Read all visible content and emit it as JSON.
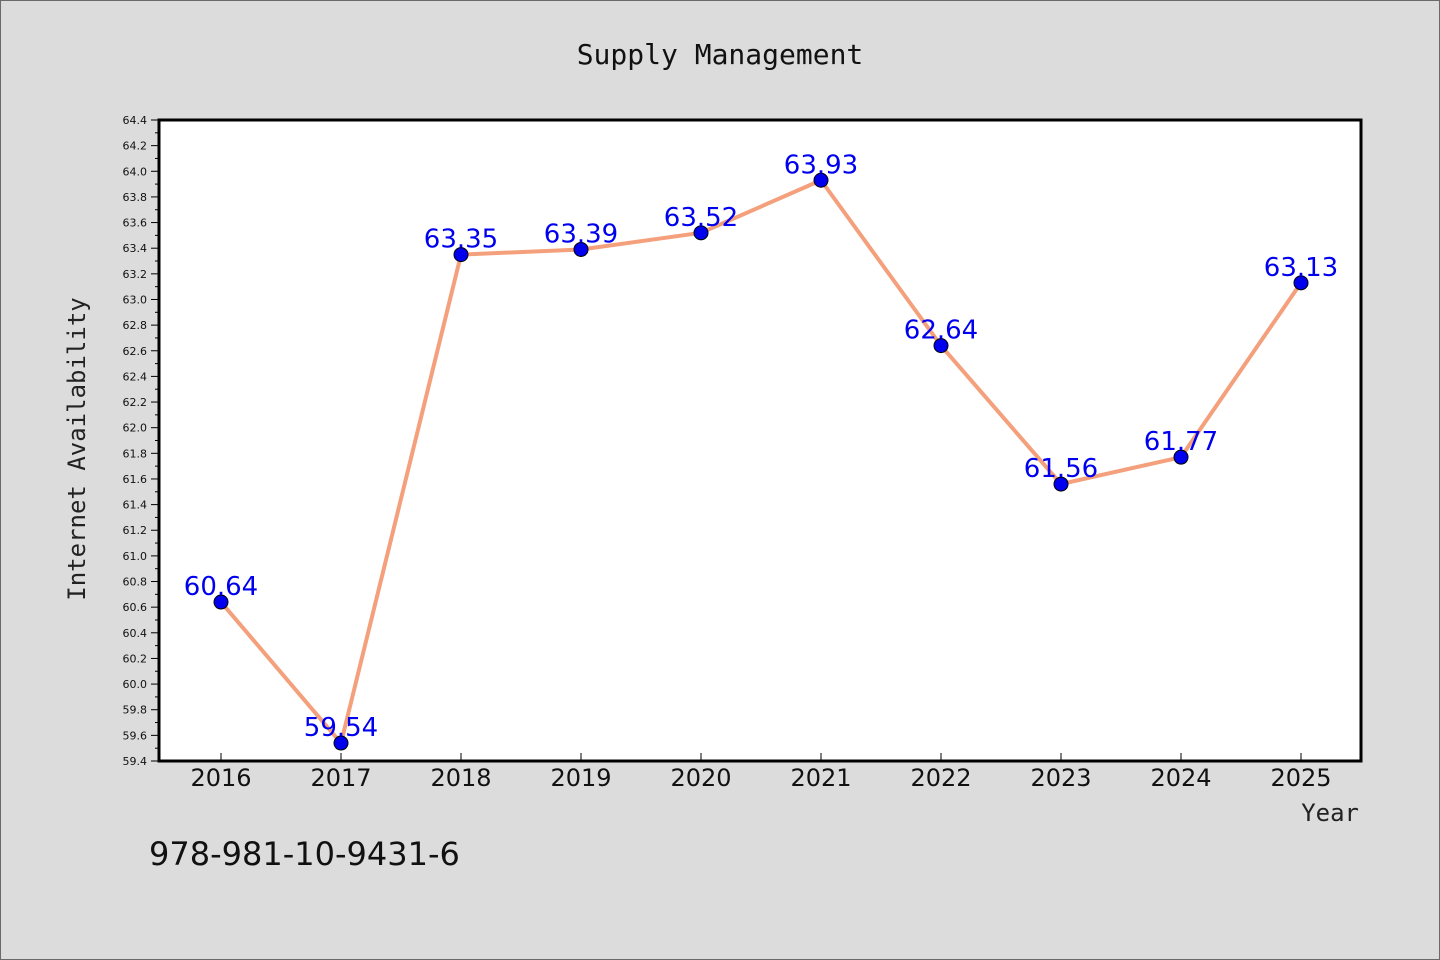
{
  "chart_data": {
    "type": "line",
    "title": "Supply Management",
    "xlabel": "Year",
    "ylabel": "Internet Availability",
    "categories": [
      "2016",
      "2017",
      "2018",
      "2019",
      "2020",
      "2021",
      "2022",
      "2023",
      "2024",
      "2025"
    ],
    "series": [
      {
        "values": [
          60.64,
          59.54,
          63.35,
          63.39,
          63.52,
          63.93,
          62.64,
          61.56,
          61.77,
          63.13
        ],
        "labels": [
          "60.64",
          "59.54",
          "63.35",
          "63.39",
          "63.52",
          "63.93",
          "62.64",
          "61.56",
          "61.77",
          "63.13"
        ],
        "line_color": "#f4a07c",
        "marker_color": "#0000ee"
      }
    ],
    "ylim": [
      59.4,
      64.4
    ],
    "yticks": [
      "59.4",
      "59.6",
      "59.8",
      "60.0",
      "60.2",
      "60.4",
      "60.6",
      "60.8",
      "61.0",
      "61.2",
      "61.4",
      "61.6",
      "61.8",
      "62.0",
      "62.2",
      "62.4",
      "62.6",
      "62.8",
      "63.0",
      "63.2",
      "63.4",
      "63.6",
      "63.8",
      "64.0",
      "64.2",
      "64.4"
    ],
    "grid": false,
    "legend": "none",
    "background": "#dcdcdc",
    "plot_background": "#ffffff"
  },
  "footer": {
    "isbn": "978-981-10-9431-6"
  }
}
